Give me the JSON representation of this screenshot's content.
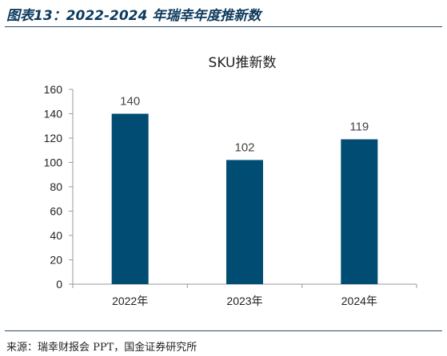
{
  "figure_title": "图表13：2022-2024 年瑞幸年度推新数",
  "source": "来源：瑞幸财报会 PPT，国金证券研究所",
  "chart_data": {
    "type": "bar",
    "title": "SKU推新数",
    "xlabel": "",
    "ylabel": "",
    "categories": [
      "2022年",
      "2023年",
      "2024年"
    ],
    "values": [
      140,
      102,
      119
    ],
    "ylim": [
      0,
      160
    ],
    "yticks": [
      0,
      20,
      40,
      60,
      80,
      100,
      120,
      140,
      160
    ],
    "data_labels": [
      "140",
      "102",
      "119"
    ],
    "bar_color": "#004c73",
    "grid": false,
    "legend": "none"
  }
}
